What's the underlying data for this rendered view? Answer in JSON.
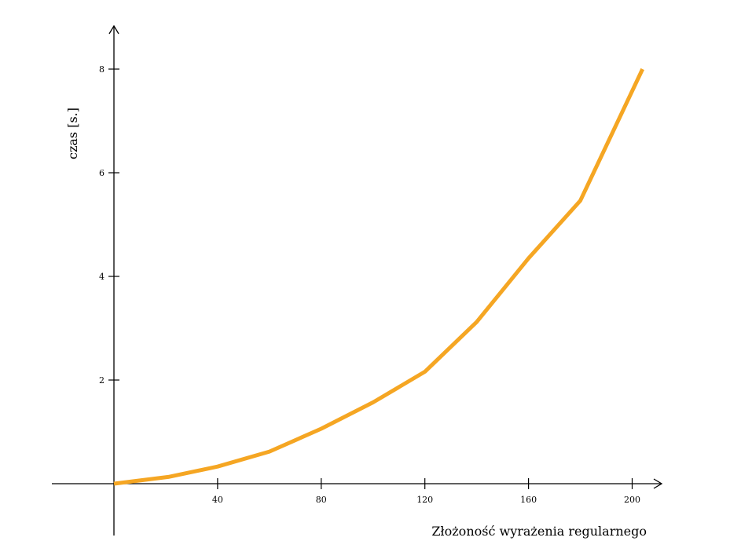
{
  "chart_data": {
    "type": "line",
    "title": "",
    "xlabel": "Złożoność wyrażenia regularnego",
    "ylabel": "czas [s.]",
    "xlim": [
      0,
      210
    ],
    "ylim": [
      0,
      8
    ],
    "xticks": [
      40,
      80,
      120,
      160,
      200
    ],
    "yticks": [
      2,
      4,
      6,
      8
    ],
    "grid": false,
    "legend": "none",
    "series": [
      {
        "color": "#f5a623",
        "x": [
          0,
          21,
          40,
          60,
          80,
          100,
          120,
          140,
          160,
          180,
          204
        ],
        "y": [
          0,
          0.13,
          0.33,
          0.62,
          1.06,
          1.57,
          2.16,
          3.12,
          4.35,
          5.46,
          8.0
        ]
      }
    ]
  }
}
